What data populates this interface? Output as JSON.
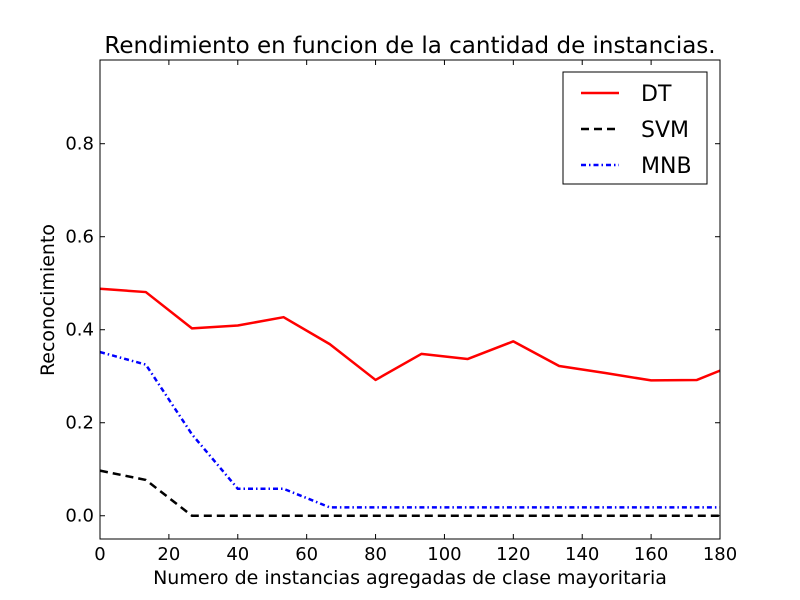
{
  "chart_data": {
    "type": "line",
    "title": "Rendimiento en funcion de la cantidad de instancias.",
    "xlabel": "Numero de instancias agregadas de clase mayoritaria",
    "ylabel": "Reconocimiento",
    "xlim": [
      0,
      180
    ],
    "ylim": [
      -0.05,
      0.98
    ],
    "x_ticks": [
      0,
      20,
      40,
      60,
      80,
      100,
      120,
      140,
      160,
      180
    ],
    "y_ticks": [
      0.0,
      0.2,
      0.4,
      0.6,
      0.8
    ],
    "y_tick_labels": [
      "0.0",
      "0.2",
      "0.4",
      "0.6",
      "0.8"
    ],
    "grid": false,
    "legend_position": "top-right",
    "x": [
      0,
      13.3,
      26.7,
      40,
      53.3,
      66.7,
      80,
      93.3,
      106.7,
      120,
      133.3,
      146.7,
      160,
      173.3,
      180
    ],
    "series": [
      {
        "name": "DT",
        "color": "#ff0000",
        "style": "solid",
        "values": [
          0.488,
          0.481,
          0.403,
          0.409,
          0.427,
          0.369,
          0.292,
          0.348,
          0.337,
          0.375,
          0.322,
          0.307,
          0.291,
          0.292,
          0.312
        ]
      },
      {
        "name": "SVM",
        "color": "#000000",
        "style": "dashed",
        "values": [
          0.097,
          0.077,
          0.0,
          0.0,
          0.0,
          0.0,
          0.0,
          0.0,
          0.0,
          0.0,
          0.0,
          0.0,
          0.0,
          0.0,
          0.0
        ]
      },
      {
        "name": "MNB",
        "color": "#0000ff",
        "style": "dashdot",
        "values": [
          0.352,
          0.325,
          0.175,
          0.058,
          0.058,
          0.018,
          0.018,
          0.018,
          0.018,
          0.018,
          0.018,
          0.018,
          0.018,
          0.018,
          0.018
        ]
      }
    ]
  }
}
